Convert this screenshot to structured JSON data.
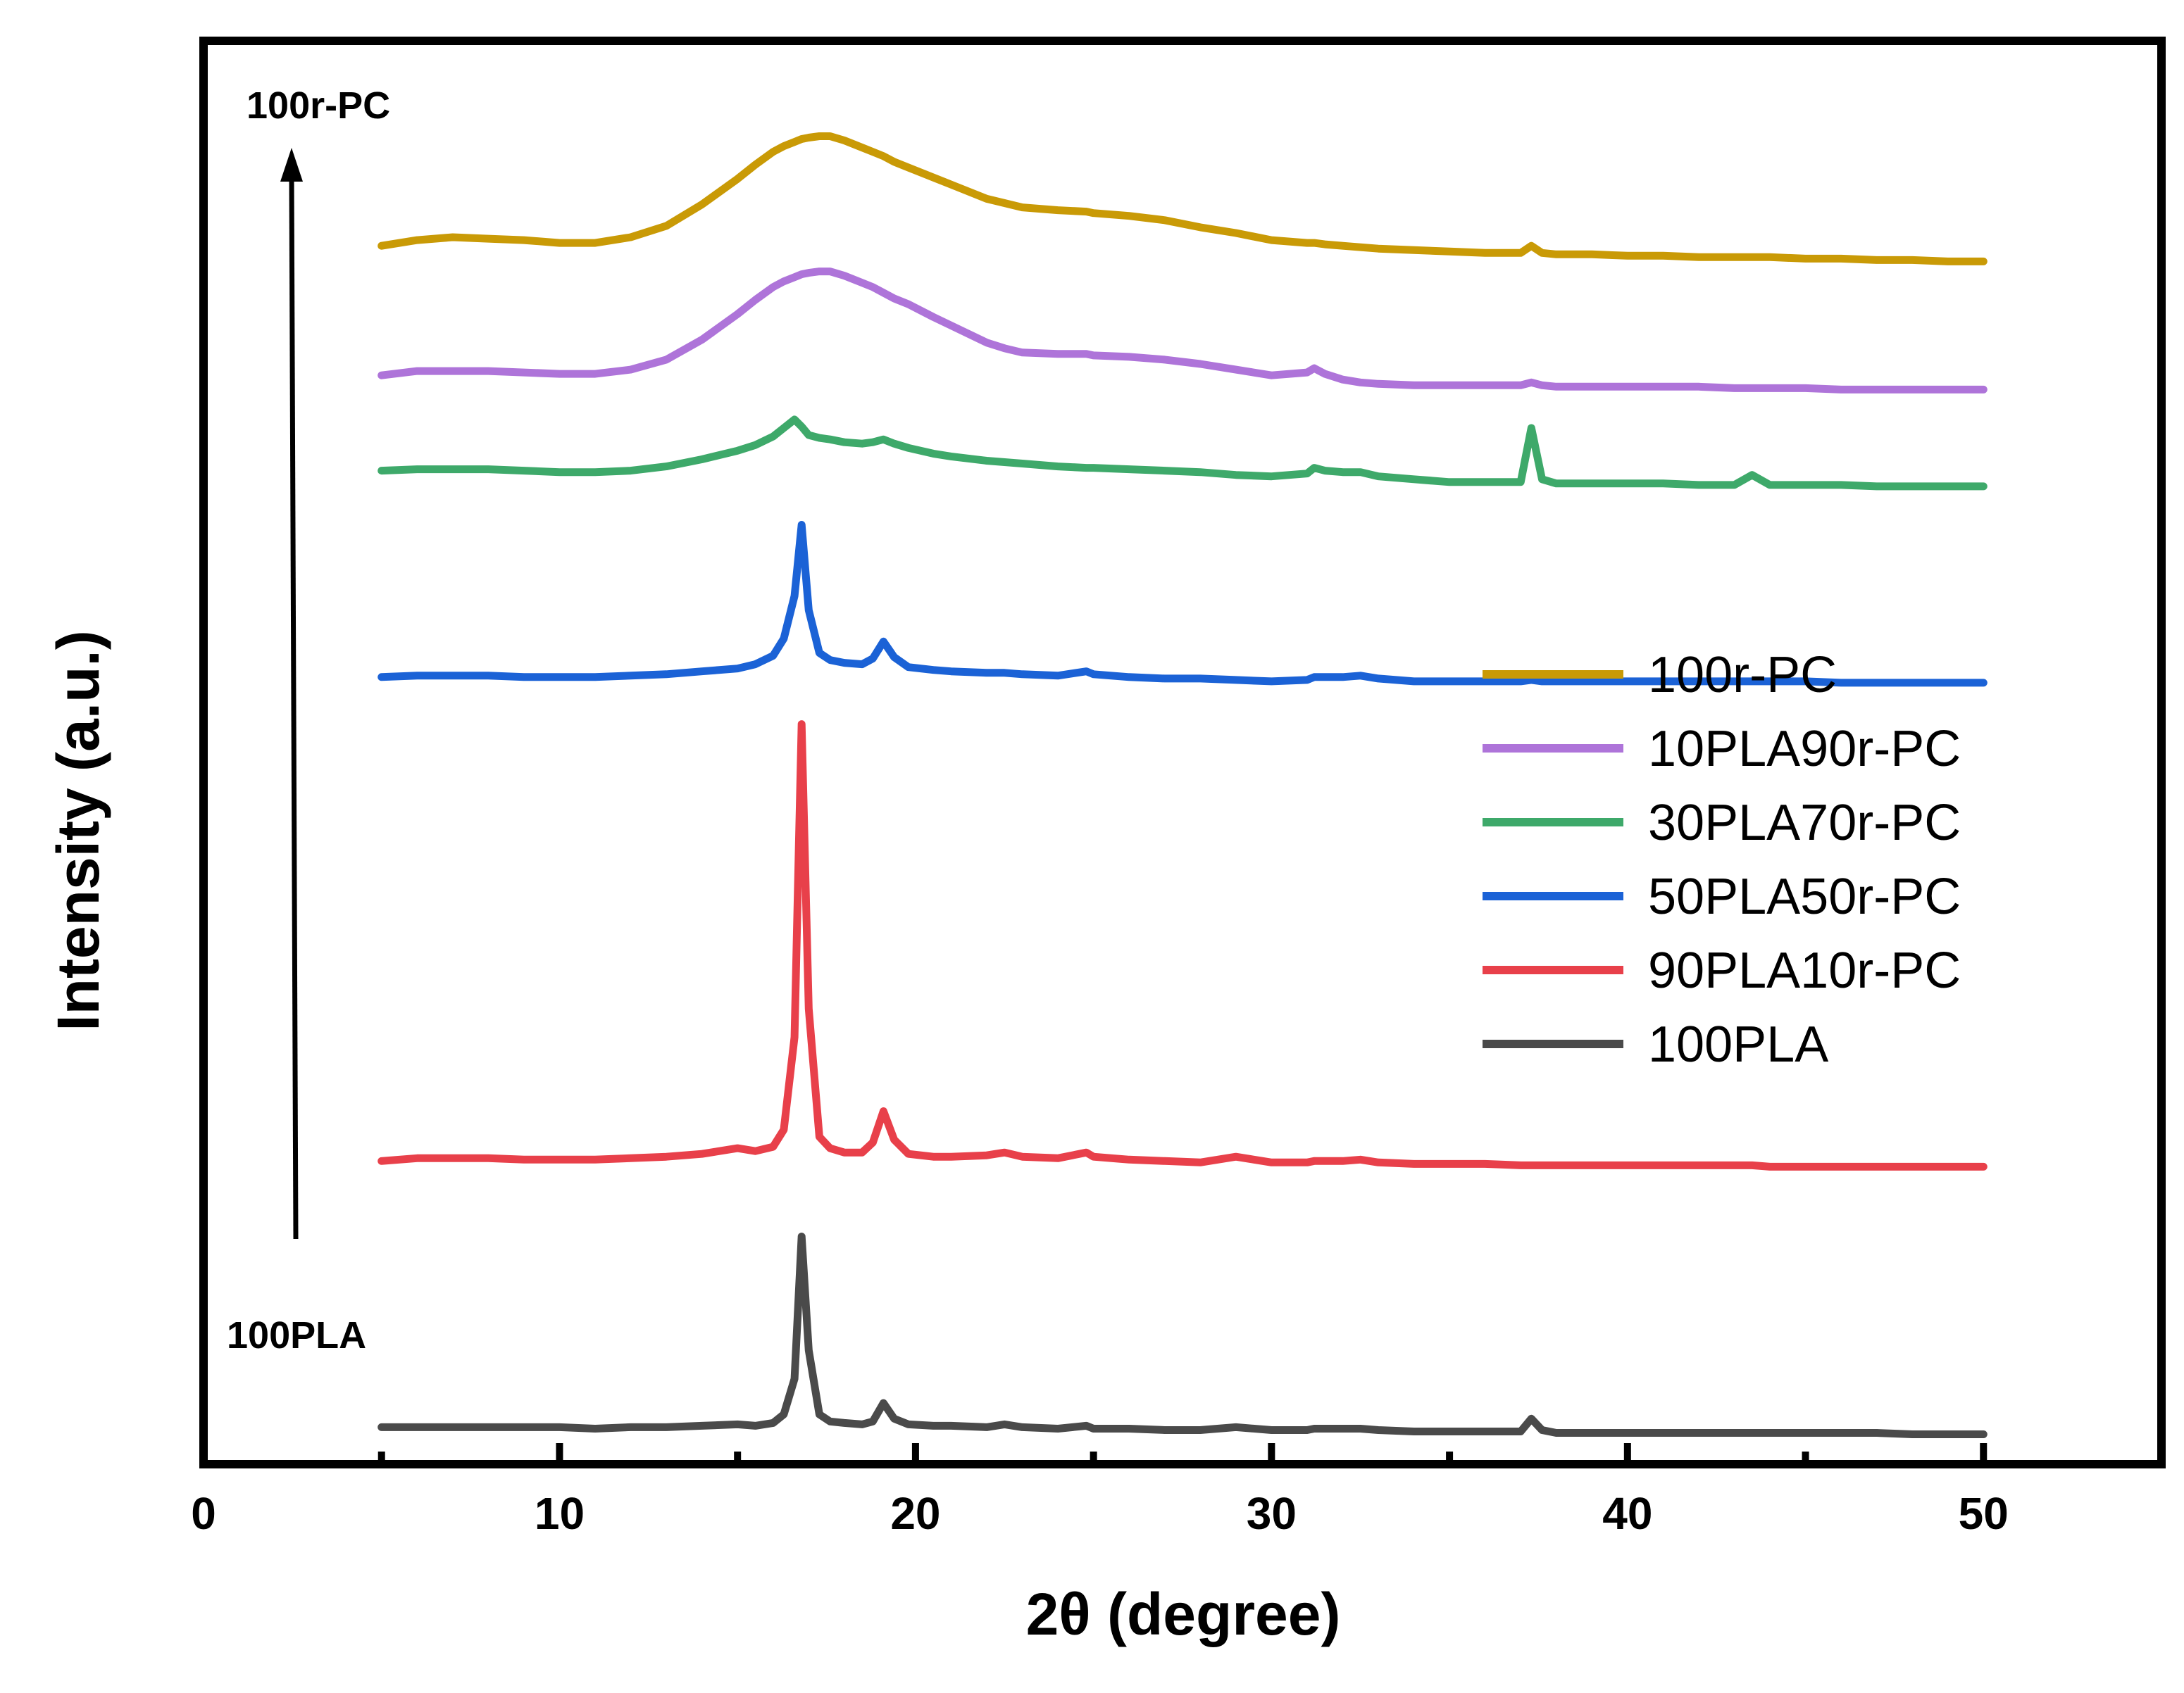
{
  "chart_data": {
    "type": "line",
    "title": "",
    "xlabel": "2θ (degree)",
    "ylabel": "Intensity (a.u.)",
    "xlim": [
      0,
      55
    ],
    "ylim": [
      0,
      100
    ],
    "x_ticks": [
      0,
      10,
      20,
      30,
      40,
      50
    ],
    "grid": false,
    "legend_position": "right",
    "annotations": {
      "top": "100r-PC",
      "bottom": "100PLA"
    },
    "x": [
      5,
      6,
      7,
      8,
      9,
      10,
      11,
      12,
      13,
      14,
      15,
      15.5,
      16,
      16.3,
      16.6,
      16.8,
      17,
      17.3,
      17.6,
      18,
      18.5,
      18.8,
      19.1,
      19.4,
      19.8,
      20.5,
      21,
      22,
      22.5,
      23,
      24,
      24.8,
      25,
      26,
      27,
      28,
      29,
      30,
      31,
      31.2,
      31.5,
      32,
      32.5,
      33,
      34,
      35,
      36,
      37,
      37.3,
      37.6,
      38,
      39,
      40,
      41,
      42,
      43,
      43.5,
      44,
      45,
      46,
      47,
      48,
      49,
      50
    ],
    "series": [
      {
        "name": "100r-PC",
        "color": "#C99A06",
        "values": [
          85.6,
          86.0,
          86.2,
          86.1,
          86.0,
          85.8,
          85.8,
          86.2,
          87.0,
          88.5,
          90.3,
          91.3,
          92.2,
          92.6,
          92.9,
          93.1,
          93.2,
          93.3,
          93.3,
          93.0,
          92.5,
          92.2,
          91.9,
          91.5,
          91.1,
          90.4,
          89.9,
          88.9,
          88.6,
          88.3,
          88.1,
          88.0,
          87.9,
          87.7,
          87.4,
          86.9,
          86.5,
          86.0,
          85.8,
          85.8,
          85.7,
          85.6,
          85.5,
          85.4,
          85.3,
          85.2,
          85.1,
          85.1,
          85.6,
          85.1,
          85.0,
          85.0,
          84.9,
          84.9,
          84.8,
          84.8,
          84.8,
          84.8,
          84.7,
          84.7,
          84.6,
          84.6,
          84.5,
          84.5
        ]
      },
      {
        "name": "10PLA90r-PC",
        "color": "#AE74D9",
        "values": [
          76.5,
          76.8,
          76.8,
          76.8,
          76.7,
          76.6,
          76.6,
          76.9,
          77.6,
          79.0,
          80.8,
          81.8,
          82.7,
          83.1,
          83.4,
          83.6,
          83.7,
          83.8,
          83.8,
          83.5,
          83.0,
          82.7,
          82.3,
          81.9,
          81.5,
          80.6,
          80.0,
          78.8,
          78.4,
          78.1,
          78.0,
          78.0,
          77.9,
          77.8,
          77.6,
          77.3,
          76.9,
          76.5,
          76.7,
          77.0,
          76.6,
          76.2,
          76.0,
          75.9,
          75.8,
          75.8,
          75.8,
          75.8,
          76.0,
          75.8,
          75.7,
          75.7,
          75.7,
          75.7,
          75.7,
          75.6,
          75.6,
          75.6,
          75.6,
          75.5,
          75.5,
          75.5,
          75.5,
          75.5
        ]
      },
      {
        "name": "30PLA70r-PC",
        "color": "#3EA96A",
        "values": [
          69.8,
          69.9,
          69.9,
          69.9,
          69.8,
          69.7,
          69.7,
          69.8,
          70.1,
          70.6,
          71.2,
          71.6,
          72.2,
          72.8,
          73.4,
          72.9,
          72.3,
          72.1,
          72.0,
          71.8,
          71.7,
          71.8,
          72.0,
          71.7,
          71.4,
          71.0,
          70.8,
          70.5,
          70.4,
          70.3,
          70.1,
          70.0,
          70.0,
          69.9,
          69.8,
          69.7,
          69.5,
          69.4,
          69.6,
          70.0,
          69.8,
          69.7,
          69.7,
          69.4,
          69.2,
          69.0,
          69.0,
          69.0,
          72.8,
          69.2,
          68.9,
          68.9,
          68.9,
          68.9,
          68.8,
          68.8,
          69.5,
          68.8,
          68.8,
          68.8,
          68.7,
          68.7,
          68.7,
          68.7
        ]
      },
      {
        "name": "50PLA50r-PC",
        "color": "#1B62D6",
        "values": [
          55.3,
          55.4,
          55.4,
          55.4,
          55.3,
          55.3,
          55.3,
          55.4,
          55.5,
          55.7,
          55.9,
          56.2,
          56.8,
          58.0,
          61.0,
          66.0,
          60.0,
          57.0,
          56.5,
          56.3,
          56.2,
          56.6,
          57.8,
          56.7,
          56.0,
          55.8,
          55.7,
          55.6,
          55.6,
          55.5,
          55.4,
          55.7,
          55.5,
          55.3,
          55.2,
          55.2,
          55.1,
          55.0,
          55.1,
          55.3,
          55.3,
          55.3,
          55.4,
          55.2,
          55.0,
          55.0,
          55.0,
          55.0,
          55.1,
          55.0,
          55.0,
          55.0,
          55.0,
          55.0,
          55.0,
          55.0,
          55.0,
          55.0,
          55.0,
          54.9,
          54.9,
          54.9,
          54.9,
          54.9
        ]
      },
      {
        "name": "90PLA10r-PC",
        "color": "#E8404A",
        "values": [
          21.3,
          21.5,
          21.5,
          21.5,
          21.4,
          21.4,
          21.4,
          21.5,
          21.6,
          21.8,
          22.2,
          22.0,
          22.3,
          23.5,
          30.0,
          52.0,
          32.0,
          23.0,
          22.2,
          21.9,
          21.9,
          22.6,
          24.8,
          22.8,
          21.8,
          21.6,
          21.6,
          21.7,
          21.9,
          21.6,
          21.5,
          21.9,
          21.6,
          21.4,
          21.3,
          21.2,
          21.6,
          21.2,
          21.2,
          21.3,
          21.3,
          21.3,
          21.4,
          21.2,
          21.1,
          21.1,
          21.1,
          21.0,
          21.0,
          21.0,
          21.0,
          21.0,
          21.0,
          21.0,
          21.0,
          21.0,
          21.0,
          20.9,
          20.9,
          20.9,
          20.9,
          20.9,
          20.9,
          20.9
        ]
      },
      {
        "name": "100PLA",
        "color": "#4A4A4A",
        "values": [
          2.6,
          2.6,
          2.6,
          2.6,
          2.6,
          2.6,
          2.5,
          2.6,
          2.6,
          2.7,
          2.8,
          2.7,
          2.9,
          3.5,
          6.0,
          16.0,
          8.0,
          3.5,
          3.0,
          2.9,
          2.8,
          3.0,
          4.3,
          3.2,
          2.8,
          2.7,
          2.7,
          2.6,
          2.8,
          2.6,
          2.5,
          2.7,
          2.5,
          2.5,
          2.4,
          2.4,
          2.6,
          2.4,
          2.4,
          2.5,
          2.5,
          2.5,
          2.5,
          2.4,
          2.3,
          2.3,
          2.3,
          2.3,
          3.2,
          2.4,
          2.2,
          2.2,
          2.2,
          2.2,
          2.2,
          2.2,
          2.2,
          2.2,
          2.2,
          2.2,
          2.2,
          2.1,
          2.1,
          2.1
        ]
      }
    ]
  }
}
